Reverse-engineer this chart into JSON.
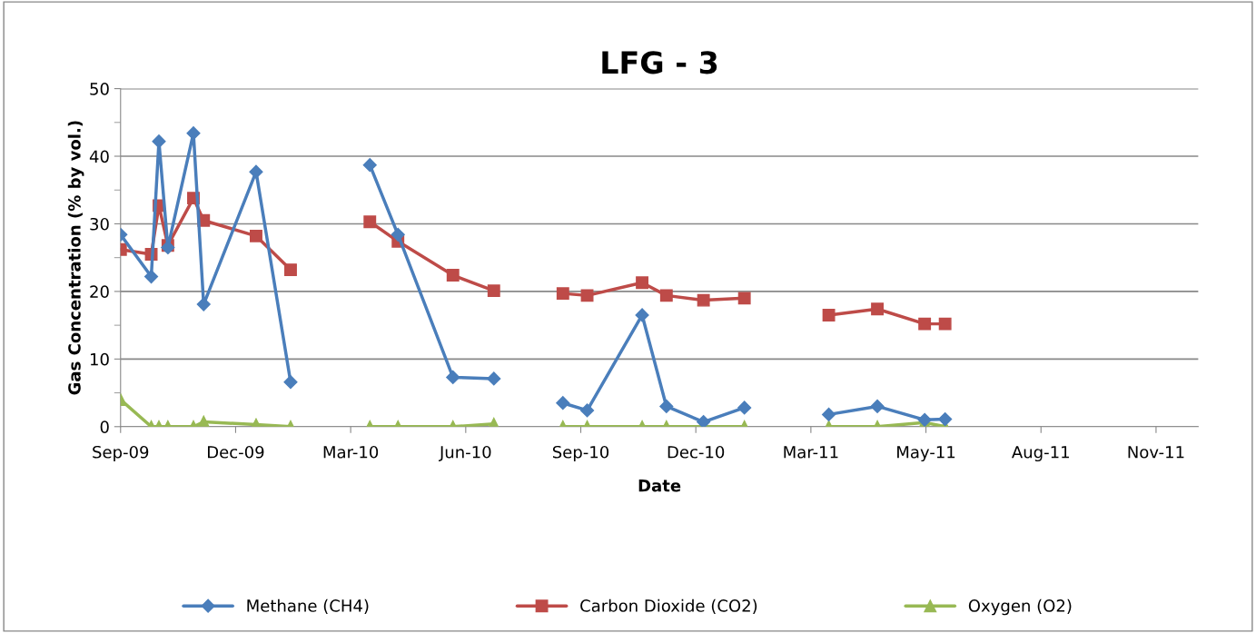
{
  "chart_data": {
    "type": "line",
    "title": "LFG - 3",
    "xlabel": "Date",
    "ylabel": "Gas Concentration (% by vol.)",
    "x": [
      "2009-09-07",
      "2009-10-01",
      "2009-10-07",
      "2009-10-14",
      "2009-11-03",
      "2009-11-11",
      "2009-12-22",
      "2010-01-18",
      "2010-02-20",
      "2010-03-21",
      "2010-04-12",
      "2010-05-25",
      "2010-06-26",
      "2010-07-20",
      "2010-08-19",
      "2010-09-07",
      "2010-10-20",
      "2010-11-08",
      "2010-12-07",
      "2011-01-08",
      "2011-02-10",
      "2011-03-15",
      "2011-04-22",
      "2011-05-29",
      "2011-06-14"
    ],
    "series": [
      {
        "name": "Methane (CH4)",
        "color": "#4a7ebb",
        "marker": "diamond",
        "values": [
          28.4,
          22.2,
          42.2,
          26.5,
          43.4,
          18.1,
          37.7,
          6.6,
          null,
          38.7,
          28.4,
          7.3,
          7.1,
          null,
          3.5,
          2.4,
          16.5,
          3.0,
          0.7,
          2.8,
          null,
          1.8,
          3.0,
          1.0,
          1.1
        ]
      },
      {
        "name": "Carbon Dioxide (CO2)",
        "color": "#be4b48",
        "marker": "square",
        "values": [
          26.2,
          25.5,
          32.7,
          26.8,
          33.8,
          30.5,
          28.2,
          23.2,
          null,
          30.3,
          27.4,
          22.4,
          20.1,
          null,
          19.7,
          19.4,
          21.3,
          19.4,
          18.7,
          19.0,
          null,
          16.5,
          17.4,
          15.2,
          15.2
        ]
      },
      {
        "name": "Oxygen (O2)",
        "color": "#98b954",
        "marker": "triangle",
        "values": [
          4.0,
          0,
          0,
          0,
          0,
          0.7,
          0.3,
          0,
          null,
          0,
          0,
          0,
          0.4,
          null,
          0,
          0,
          0,
          0,
          0,
          0,
          null,
          0,
          0,
          0.6,
          0
        ]
      }
    ],
    "xlim": [
      "2009-09-07",
      "2011-12-29"
    ],
    "xticks": [
      {
        "value": "2009-09-07",
        "label": "Sep-09"
      },
      {
        "value": "2009-12-06",
        "label": "Dec-09"
      },
      {
        "value": "2010-03-06",
        "label": "Mar-10"
      },
      {
        "value": "2010-06-04",
        "label": "Jun-10"
      },
      {
        "value": "2010-09-02",
        "label": "Sep-10"
      },
      {
        "value": "2010-12-01",
        "label": "Dec-10"
      },
      {
        "value": "2011-03-01",
        "label": "Mar-11"
      },
      {
        "value": "2011-05-30",
        "label": "May-11"
      },
      {
        "value": "2011-08-28",
        "label": "Aug-11"
      },
      {
        "value": "2011-11-26",
        "label": "Nov-11"
      }
    ],
    "ylim": [
      0,
      50
    ],
    "yticks": [
      0,
      10,
      20,
      30,
      40,
      50
    ],
    "grid": "y",
    "legend": "bottom",
    "line_style": "solid"
  }
}
